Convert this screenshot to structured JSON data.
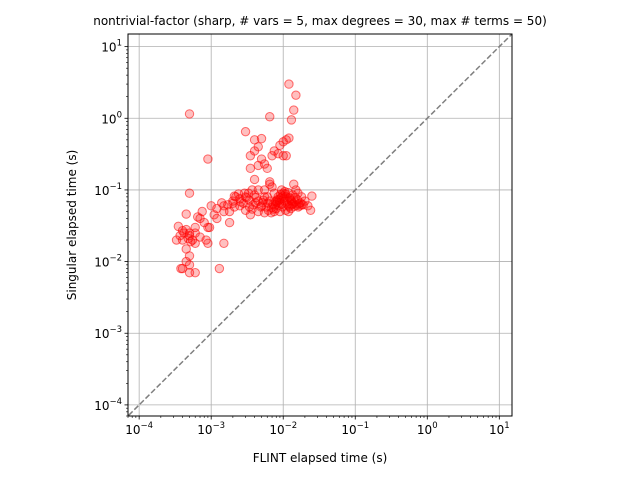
{
  "chart_data": {
    "type": "scatter",
    "title": "nontrivial-factor (sharp, # vars = 5, max degrees = 30, max # terms = 50)",
    "xlabel": "FLINT elapsed time (s)",
    "ylabel": "Singular elapsed time (s)",
    "xscale": "log",
    "yscale": "log",
    "xlim": [
      7e-05,
      15
    ],
    "ylim": [
      7e-05,
      15
    ],
    "grid": true,
    "x_ticks": [
      {
        "value": 0.0001,
        "base": "10",
        "exp": "−4"
      },
      {
        "value": 0.001,
        "base": "10",
        "exp": "−3"
      },
      {
        "value": 0.01,
        "base": "10",
        "exp": "−2"
      },
      {
        "value": 0.1,
        "base": "10",
        "exp": "−1"
      },
      {
        "value": 1,
        "base": "10",
        "exp": "0"
      },
      {
        "value": 10,
        "base": "10",
        "exp": "1"
      }
    ],
    "y_ticks": [
      {
        "value": 0.0001,
        "base": "10",
        "exp": "−4"
      },
      {
        "value": 0.001,
        "base": "10",
        "exp": "−3"
      },
      {
        "value": 0.01,
        "base": "10",
        "exp": "−2"
      },
      {
        "value": 0.1,
        "base": "10",
        "exp": "−1"
      },
      {
        "value": 1,
        "base": "10",
        "exp": "0"
      },
      {
        "value": 10,
        "base": "10",
        "exp": "1"
      }
    ],
    "reference_line": {
      "style": "dashed",
      "color": "#7f7f7f",
      "equation": "y = x"
    },
    "marker": {
      "edge_color": "#ff0000",
      "face_color": "#ff0000",
      "face_alpha": 0.25
    },
    "points": [
      [
        0.0005,
        1.15
      ],
      [
        0.0009,
        0.27
      ],
      [
        0.012,
        3.0
      ],
      [
        0.015,
        2.1
      ],
      [
        0.014,
        1.3
      ],
      [
        0.0065,
        1.05
      ],
      [
        0.013,
        0.95
      ],
      [
        0.003,
        0.65
      ],
      [
        0.004,
        0.5
      ],
      [
        0.005,
        0.52
      ],
      [
        0.0045,
        0.4
      ],
      [
        0.004,
        0.35
      ],
      [
        0.0035,
        0.3
      ],
      [
        0.005,
        0.27
      ],
      [
        0.006,
        0.2
      ],
      [
        0.0075,
        0.35
      ],
      [
        0.0085,
        0.32
      ],
      [
        0.007,
        0.3
      ],
      [
        0.01,
        0.47
      ],
      [
        0.011,
        0.5
      ],
      [
        0.012,
        0.53
      ],
      [
        0.009,
        0.42
      ],
      [
        0.011,
        0.3
      ],
      [
        0.01,
        0.3
      ],
      [
        0.0035,
        0.2
      ],
      [
        0.0045,
        0.22
      ],
      [
        0.0055,
        0.23
      ],
      [
        0.004,
        0.14
      ],
      [
        0.0065,
        0.13
      ],
      [
        0.0045,
        0.1
      ],
      [
        0.0005,
        0.09
      ],
      [
        0.001,
        0.06
      ],
      [
        0.0012,
        0.055
      ],
      [
        0.0015,
        0.06
      ],
      [
        0.0018,
        0.05
      ],
      [
        0.002,
        0.07
      ],
      [
        0.0022,
        0.08
      ],
      [
        0.0025,
        0.075
      ],
      [
        0.0028,
        0.065
      ],
      [
        0.003,
        0.08
      ],
      [
        0.0033,
        0.09
      ],
      [
        0.0037,
        0.1
      ],
      [
        0.004,
        0.085
      ],
      [
        0.0045,
        0.07
      ],
      [
        0.005,
        0.06
      ],
      [
        0.0055,
        0.1
      ],
      [
        0.006,
        0.08
      ],
      [
        0.0065,
        0.12
      ],
      [
        0.007,
        0.11
      ],
      [
        0.0075,
        0.09
      ],
      [
        0.008,
        0.07
      ],
      [
        0.0085,
        0.06
      ],
      [
        0.009,
        0.05
      ],
      [
        0.0095,
        0.1
      ],
      [
        0.01,
        0.09
      ],
      [
        0.011,
        0.08
      ],
      [
        0.012,
        0.06
      ],
      [
        0.013,
        0.07
      ],
      [
        0.014,
        0.12
      ],
      [
        0.015,
        0.1
      ],
      [
        0.016,
        0.09
      ],
      [
        0.017,
        0.06
      ],
      [
        0.018,
        0.08
      ],
      [
        0.02,
        0.07
      ],
      [
        0.022,
        0.06
      ],
      [
        0.024,
        0.052
      ],
      [
        0.025,
        0.082
      ],
      [
        0.0075,
        0.05
      ],
      [
        0.008,
        0.055
      ],
      [
        0.0025,
        0.06
      ],
      [
        0.0035,
        0.045
      ],
      [
        0.0045,
        0.05
      ],
      [
        0.0055,
        0.048
      ],
      [
        0.003,
        0.052
      ],
      [
        0.002,
        0.065
      ],
      [
        0.0015,
        0.05
      ],
      [
        0.0011,
        0.045
      ],
      [
        0.0012,
        0.04
      ],
      [
        0.0018,
        0.035
      ],
      [
        0.0007,
        0.04
      ],
      [
        0.0008,
        0.035
      ],
      [
        0.0009,
        0.03
      ],
      [
        0.0006,
        0.03
      ],
      [
        0.0005,
        0.025
      ],
      [
        0.0004,
        0.02
      ],
      [
        0.00035,
        0.031
      ],
      [
        0.0004,
        0.027
      ],
      [
        0.00045,
        0.028
      ],
      [
        0.0005,
        0.023
      ],
      [
        0.00055,
        0.02
      ],
      [
        0.0006,
        0.018
      ],
      [
        0.0007,
        0.022
      ],
      [
        0.00085,
        0.02
      ],
      [
        0.0009,
        0.018
      ],
      [
        0.00095,
        0.03
      ],
      [
        0.00045,
        0.015
      ],
      [
        0.0005,
        0.012
      ],
      [
        0.00045,
        0.01
      ],
      [
        0.0005,
        0.009
      ],
      [
        0.0004,
        0.008
      ],
      [
        0.00038,
        0.008
      ],
      [
        0.0005,
        0.007
      ],
      [
        0.0006,
        0.007
      ],
      [
        0.0013,
        0.008
      ],
      [
        0.0015,
        0.018
      ],
      [
        0.00033,
        0.02
      ],
      [
        0.00037,
        0.023
      ],
      [
        0.00042,
        0.025
      ],
      [
        0.00048,
        0.021
      ],
      [
        0.00052,
        0.019
      ],
      [
        0.0006,
        0.025
      ],
      [
        0.00065,
        0.042
      ],
      [
        0.00075,
        0.05
      ],
      [
        0.00045,
        0.046
      ],
      [
        0.0055,
        0.08
      ],
      [
        0.0065,
        0.07
      ],
      [
        0.0072,
        0.063
      ],
      [
        0.0088,
        0.072
      ],
      [
        0.0105,
        0.07
      ],
      [
        0.0115,
        0.062
      ],
      [
        0.0125,
        0.075
      ],
      [
        0.0135,
        0.085
      ],
      [
        0.0145,
        0.068
      ],
      [
        0.0165,
        0.064
      ],
      [
        0.019,
        0.062
      ],
      [
        0.0098,
        0.058
      ],
      [
        0.0108,
        0.052
      ],
      [
        0.0118,
        0.05
      ],
      [
        0.0128,
        0.055
      ],
      [
        0.0085,
        0.08
      ],
      [
        0.0092,
        0.087
      ],
      [
        0.0105,
        0.095
      ],
      [
        0.0034,
        0.072
      ],
      [
        0.0026,
        0.068
      ],
      [
        0.0021,
        0.058
      ],
      [
        0.0017,
        0.062
      ],
      [
        0.0014,
        0.066
      ],
      [
        0.0038,
        0.062
      ],
      [
        0.0042,
        0.078
      ],
      [
        0.0052,
        0.066
      ],
      [
        0.0058,
        0.058
      ],
      [
        0.0062,
        0.052
      ],
      [
        0.0068,
        0.048
      ],
      [
        0.0078,
        0.062
      ],
      [
        0.0082,
        0.067
      ],
      [
        0.0095,
        0.063
      ],
      [
        0.0102,
        0.077
      ],
      [
        0.0112,
        0.069
      ],
      [
        0.0122,
        0.058
      ],
      [
        0.0132,
        0.063
      ],
      [
        0.0142,
        0.059
      ],
      [
        0.0152,
        0.061
      ],
      [
        0.0162,
        0.058
      ],
      [
        0.0172,
        0.066
      ],
      [
        0.0182,
        0.062
      ],
      [
        0.0021,
        0.082
      ],
      [
        0.0024,
        0.088
      ],
      [
        0.0029,
        0.09
      ],
      [
        0.0031,
        0.078
      ],
      [
        0.0034,
        0.058
      ],
      [
        0.0037,
        0.054
      ],
      [
        0.0041,
        0.066
      ],
      [
        0.0049,
        0.058
      ],
      [
        0.0053,
        0.072
      ],
      [
        0.0061,
        0.065
      ],
      [
        0.0069,
        0.057
      ],
      [
        0.0073,
        0.054
      ],
      [
        0.0077,
        0.068
      ],
      [
        0.0083,
        0.073
      ],
      [
        0.0089,
        0.066
      ],
      [
        0.0093,
        0.077
      ],
      [
        0.0099,
        0.082
      ],
      [
        0.0107,
        0.088
      ],
      [
        0.0117,
        0.092
      ],
      [
        0.0123,
        0.078
      ],
      [
        0.0129,
        0.071
      ],
      [
        0.0137,
        0.064
      ],
      [
        0.0147,
        0.078
      ],
      [
        0.0157,
        0.073
      ]
    ]
  }
}
